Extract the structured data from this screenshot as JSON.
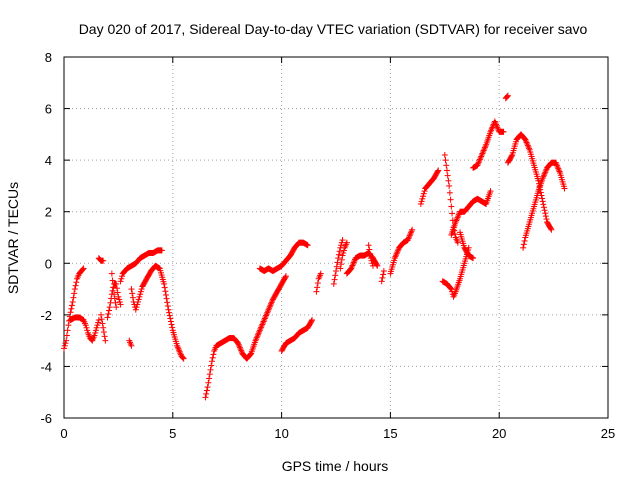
{
  "chart_data": {
    "type": "scatter",
    "title": "Day 020 of 2017, Sidereal Day-to-day VTEC variation (SDTVAR) for receiver savo",
    "xlabel": "GPS time / hours",
    "ylabel": "SDTVAR / TECUs",
    "xlim": [
      0,
      25
    ],
    "ylim": [
      -6,
      8
    ],
    "xticks": [
      "0",
      "5",
      "10",
      "15",
      "20",
      "25"
    ],
    "yticks": [
      "-6",
      "-4",
      "-2",
      "0",
      "2",
      "4",
      "6",
      "8"
    ],
    "grid": true,
    "marker": "plus",
    "color": "#ff0000",
    "series": [
      {
        "segments": [
          [
            [
              0.0,
              -3.3
            ],
            [
              0.1,
              -3.0
            ],
            [
              0.2,
              -2.4
            ],
            [
              0.3,
              -1.9
            ],
            [
              0.4,
              -1.5
            ],
            [
              0.5,
              -1.0
            ],
            [
              0.6,
              -0.6
            ],
            [
              0.7,
              -0.4
            ],
            [
              0.8,
              -0.3
            ],
            [
              0.9,
              -0.2
            ]
          ],
          [
            [
              0.3,
              -2.2
            ],
            [
              0.5,
              -2.1
            ],
            [
              0.7,
              -2.1
            ],
            [
              0.9,
              -2.2
            ],
            [
              1.0,
              -2.4
            ],
            [
              1.1,
              -2.7
            ],
            [
              1.2,
              -2.9
            ],
            [
              1.3,
              -3.0
            ],
            [
              1.4,
              -2.8
            ],
            [
              1.5,
              -2.5
            ],
            [
              1.6,
              -2.2
            ]
          ],
          [
            [
              1.6,
              0.2
            ],
            [
              1.7,
              0.1
            ],
            [
              1.8,
              0.1
            ]
          ],
          [
            [
              1.7,
              -2.0
            ],
            [
              1.8,
              -2.5
            ],
            [
              1.9,
              -3.0
            ]
          ],
          [
            [
              2.0,
              -2.1
            ],
            [
              2.1,
              -1.7
            ],
            [
              2.2,
              -1.2
            ],
            [
              2.3,
              -0.8
            ],
            [
              2.4,
              -0.8
            ],
            [
              2.5,
              -1.3
            ],
            [
              2.6,
              -1.6
            ]
          ],
          [
            [
              2.2,
              -0.4
            ],
            [
              2.3,
              -1.2
            ],
            [
              2.4,
              -1.7
            ]
          ],
          [
            [
              2.6,
              -0.7
            ],
            [
              2.7,
              -0.4
            ],
            [
              2.9,
              -0.2
            ],
            [
              3.1,
              -0.1
            ],
            [
              3.3,
              0.0
            ],
            [
              3.5,
              0.2
            ],
            [
              3.7,
              0.3
            ],
            [
              3.9,
              0.4
            ],
            [
              4.1,
              0.4
            ],
            [
              4.3,
              0.5
            ],
            [
              4.5,
              0.5
            ]
          ],
          [
            [
              3.0,
              -3.0
            ],
            [
              3.1,
              -3.2
            ]
          ],
          [
            [
              3.1,
              -1.0
            ],
            [
              3.2,
              -1.5
            ],
            [
              3.3,
              -1.8
            ],
            [
              3.4,
              -1.5
            ],
            [
              3.5,
              -1.2
            ],
            [
              3.6,
              -0.9
            ],
            [
              3.8,
              -0.6
            ],
            [
              4.0,
              -0.3
            ],
            [
              4.2,
              -0.1
            ],
            [
              4.4,
              -0.2
            ],
            [
              4.6,
              -0.8
            ],
            [
              4.8,
              -1.8
            ],
            [
              5.0,
              -2.6
            ],
            [
              5.2,
              -3.2
            ],
            [
              5.4,
              -3.6
            ],
            [
              5.5,
              -3.7
            ]
          ],
          [
            [
              6.5,
              -5.2
            ],
            [
              6.6,
              -4.8
            ],
            [
              6.7,
              -4.3
            ],
            [
              6.8,
              -3.8
            ],
            [
              6.9,
              -3.4
            ],
            [
              7.0,
              -3.2
            ],
            [
              7.2,
              -3.1
            ],
            [
              7.4,
              -3.0
            ],
            [
              7.6,
              -2.9
            ],
            [
              7.8,
              -2.9
            ],
            [
              8.0,
              -3.1
            ],
            [
              8.2,
              -3.5
            ],
            [
              8.4,
              -3.7
            ],
            [
              8.6,
              -3.5
            ],
            [
              8.8,
              -3.0
            ],
            [
              9.0,
              -2.6
            ],
            [
              9.2,
              -2.2
            ],
            [
              9.4,
              -1.8
            ],
            [
              9.6,
              -1.4
            ],
            [
              9.8,
              -1.1
            ],
            [
              10.0,
              -0.8
            ],
            [
              10.2,
              -0.5
            ]
          ],
          [
            [
              9.0,
              -0.2
            ],
            [
              9.2,
              -0.3
            ],
            [
              9.4,
              -0.2
            ],
            [
              9.6,
              -0.3
            ],
            [
              9.8,
              -0.2
            ],
            [
              10.0,
              -0.1
            ],
            [
              10.2,
              0.1
            ],
            [
              10.4,
              0.3
            ],
            [
              10.6,
              0.6
            ],
            [
              10.8,
              0.8
            ],
            [
              11.0,
              0.8
            ],
            [
              11.2,
              0.7
            ]
          ],
          [
            [
              10.0,
              -3.4
            ],
            [
              10.2,
              -3.1
            ],
            [
              10.4,
              -3.0
            ],
            [
              10.6,
              -2.9
            ],
            [
              10.8,
              -2.7
            ],
            [
              11.0,
              -2.6
            ],
            [
              11.2,
              -2.5
            ],
            [
              11.4,
              -2.2
            ]
          ],
          [
            [
              11.6,
              -1.1
            ],
            [
              11.7,
              -0.6
            ],
            [
              11.8,
              -0.4
            ]
          ],
          [
            [
              12.4,
              -0.8
            ],
            [
              12.5,
              -0.3
            ],
            [
              12.6,
              0.2
            ],
            [
              12.7,
              0.6
            ],
            [
              12.8,
              0.9
            ]
          ],
          [
            [
              12.7,
              -0.2
            ],
            [
              12.8,
              0.3
            ],
            [
              12.9,
              0.6
            ],
            [
              13.0,
              0.8
            ]
          ],
          [
            [
              13.0,
              -0.4
            ],
            [
              13.2,
              -0.2
            ],
            [
              13.4,
              0.2
            ],
            [
              13.6,
              0.3
            ],
            [
              13.8,
              0.3
            ],
            [
              14.0,
              0.4
            ],
            [
              14.2,
              0.2
            ],
            [
              14.4,
              -0.1
            ]
          ],
          [
            [
              14.0,
              0.7
            ],
            [
              14.1,
              0.2
            ],
            [
              14.2,
              -0.1
            ]
          ],
          [
            [
              14.6,
              -0.7
            ],
            [
              14.7,
              -0.3
            ]
          ],
          [
            [
              15.0,
              -0.4
            ],
            [
              15.2,
              0.2
            ],
            [
              15.4,
              0.6
            ],
            [
              15.6,
              0.8
            ],
            [
              15.8,
              0.9
            ],
            [
              16.0,
              1.3
            ]
          ],
          [
            [
              16.4,
              2.3
            ],
            [
              16.5,
              2.6
            ],
            [
              16.6,
              2.9
            ],
            [
              16.8,
              3.1
            ],
            [
              17.0,
              3.3
            ],
            [
              17.2,
              3.6
            ]
          ],
          [
            [
              17.4,
              -0.7
            ],
            [
              17.6,
              -0.8
            ],
            [
              17.8,
              -1.0
            ],
            [
              17.9,
              -1.3
            ],
            [
              18.0,
              -1.1
            ],
            [
              18.2,
              -0.6
            ],
            [
              18.4,
              0.0
            ],
            [
              18.6,
              0.6
            ]
          ],
          [
            [
              17.5,
              4.2
            ],
            [
              17.6,
              3.6
            ],
            [
              17.7,
              3.0
            ],
            [
              17.8,
              2.2
            ],
            [
              17.9,
              1.4
            ],
            [
              18.0,
              1.0
            ],
            [
              18.1,
              0.8
            ]
          ],
          [
            [
              17.8,
              1.1
            ],
            [
              18.0,
              1.6
            ],
            [
              18.2,
              2.0
            ],
            [
              18.4,
              2.0
            ],
            [
              18.6,
              2.2
            ],
            [
              18.8,
              2.4
            ],
            [
              19.0,
              2.5
            ],
            [
              19.2,
              2.4
            ],
            [
              19.4,
              2.3
            ],
            [
              19.6,
              2.8
            ]
          ],
          [
            [
              18.2,
              1.2
            ],
            [
              18.4,
              0.6
            ],
            [
              18.6,
              0.3
            ],
            [
              18.8,
              0.2
            ]
          ],
          [
            [
              18.8,
              3.7
            ],
            [
              19.0,
              3.8
            ],
            [
              19.2,
              4.2
            ],
            [
              19.4,
              4.6
            ],
            [
              19.6,
              5.1
            ],
            [
              19.8,
              5.5
            ],
            [
              20.0,
              5.1
            ],
            [
              20.2,
              5.1
            ]
          ],
          [
            [
              20.3,
              6.4
            ],
            [
              20.4,
              6.5
            ]
          ],
          [
            [
              20.4,
              3.9
            ],
            [
              20.6,
              4.2
            ],
            [
              20.8,
              4.8
            ],
            [
              21.0,
              5.0
            ],
            [
              21.2,
              4.8
            ],
            [
              21.4,
              4.4
            ],
            [
              21.6,
              3.8
            ],
            [
              21.8,
              3.2
            ],
            [
              22.0,
              2.4
            ],
            [
              22.2,
              1.6
            ],
            [
              22.4,
              1.3
            ]
          ],
          [
            [
              21.1,
              0.6
            ],
            [
              21.2,
              1.0
            ],
            [
              21.4,
              1.6
            ],
            [
              21.6,
              2.2
            ],
            [
              21.8,
              2.8
            ],
            [
              22.0,
              3.3
            ],
            [
              22.2,
              3.7
            ],
            [
              22.4,
              3.9
            ],
            [
              22.6,
              3.9
            ],
            [
              22.8,
              3.5
            ],
            [
              23.0,
              2.9
            ]
          ]
        ]
      }
    ]
  }
}
